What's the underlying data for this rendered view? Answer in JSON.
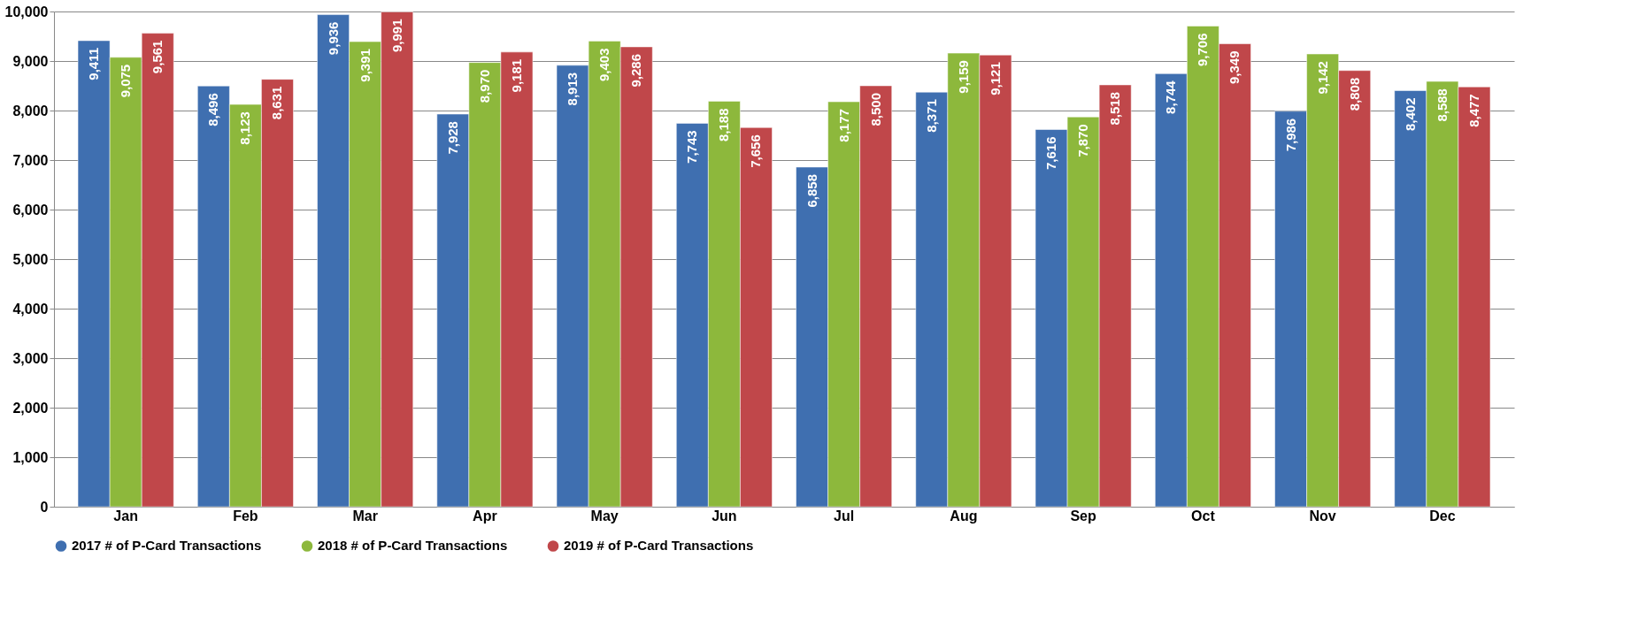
{
  "chart_data": {
    "type": "bar",
    "categories": [
      "Jan",
      "Feb",
      "Mar",
      "Apr",
      "May",
      "Jun",
      "Jul",
      "Aug",
      "Sep",
      "Oct",
      "Nov",
      "Dec"
    ],
    "series": [
      {
        "name": "2017 # of P-Card Transactions",
        "color": "#3f6fb0",
        "values": [
          9411,
          8496,
          9936,
          7928,
          8913,
          7743,
          6858,
          8371,
          7616,
          8744,
          7986,
          8402
        ],
        "value_labels": [
          "9,411",
          "8,496",
          "9,936",
          "7,928",
          "8,913",
          "7,743",
          "6,858",
          "8,371",
          "7,616",
          "8,744",
          "7,986",
          "8,402"
        ]
      },
      {
        "name": "2018 # of P-Card Transactions",
        "color": "#8db83c",
        "values": [
          9075,
          8123,
          9391,
          8970,
          9403,
          8188,
          8177,
          9159,
          7870,
          9706,
          9142,
          8588
        ],
        "value_labels": [
          "9,075",
          "8,123",
          "9,391",
          "8,970",
          "9,403",
          "8,188",
          "8,177",
          "9,159",
          "7,870",
          "9,706",
          "9,142",
          "8,588"
        ]
      },
      {
        "name": "2019 # of P-Card Transactions",
        "color": "#c0474a",
        "values": [
          9561,
          8631,
          9991,
          9181,
          9286,
          7656,
          8500,
          9121,
          8518,
          9349,
          8808,
          8477
        ],
        "value_labels": [
          "9,561",
          "8,631",
          "9,991",
          "9,181",
          "9,286",
          "7,656",
          "8,500",
          "9,121",
          "8,518",
          "9,349",
          "8,808",
          "8,477"
        ]
      }
    ],
    "ylim": [
      0,
      10000
    ],
    "yticks": [
      0,
      {
        "value": 1000,
        "label": "1,000"
      },
      {
        "value": 2000,
        "label": "2,000"
      },
      {
        "value": 3000,
        "label": "3,000"
      },
      {
        "value": 4000,
        "label": "4,000"
      },
      {
        "value": 5000,
        "label": "5,000"
      },
      {
        "value": 6000,
        "label": "6,000"
      },
      {
        "value": 7000,
        "label": "7,000"
      },
      {
        "value": 8000,
        "label": "8,000"
      },
      {
        "value": 9000,
        "label": "9,000"
      },
      {
        "value": 10000,
        "label": "10,000"
      }
    ],
    "grid": "y",
    "legend": "bottom"
  }
}
